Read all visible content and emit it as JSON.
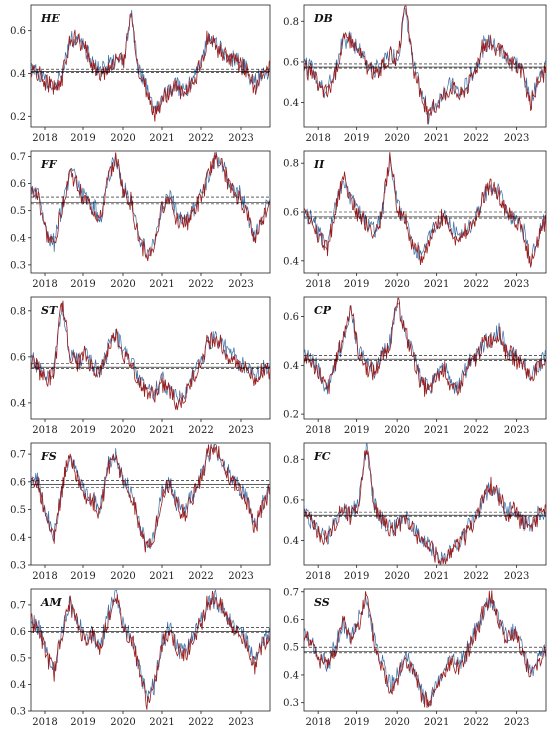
{
  "chart_data": [
    {
      "type": "line",
      "title": "HE",
      "x_ticks": [
        "2018",
        "2019",
        "2020",
        "2021",
        "2022",
        "2023"
      ],
      "y_ticks": [
        0.2,
        0.4,
        0.6
      ],
      "ylim": [
        0.15,
        0.72
      ],
      "mean": 0.41,
      "band": [
        0.405,
        0.42
      ],
      "series": [
        {
          "color": "#3b6ea5",
          "values": [
            0.42,
            0.41,
            0.36,
            0.34,
            0.38,
            0.55,
            0.57,
            0.52,
            0.45,
            0.41,
            0.44,
            0.47,
            0.46,
            0.68,
            0.4,
            0.33,
            0.22,
            0.28,
            0.32,
            0.35,
            0.31,
            0.37,
            0.45,
            0.57,
            0.54,
            0.5,
            0.47,
            0.46,
            0.42,
            0.35,
            0.4,
            0.43
          ]
        },
        {
          "color": "#9b1c1c",
          "values": [
            0.41,
            0.4,
            0.35,
            0.33,
            0.37,
            0.56,
            0.56,
            0.51,
            0.44,
            0.4,
            0.43,
            0.46,
            0.45,
            0.69,
            0.39,
            0.32,
            0.21,
            0.27,
            0.31,
            0.34,
            0.3,
            0.36,
            0.44,
            0.58,
            0.53,
            0.49,
            0.46,
            0.45,
            0.41,
            0.34,
            0.39,
            0.42
          ]
        }
      ]
    },
    {
      "type": "line",
      "title": "DB",
      "x_ticks": [
        "2018",
        "2019",
        "2020",
        "2021",
        "2022",
        "2023"
      ],
      "y_ticks": [
        0.4,
        0.6,
        0.8
      ],
      "ylim": [
        0.28,
        0.88
      ],
      "mean": 0.575,
      "band": [
        0.57,
        0.59
      ],
      "series": [
        {
          "color": "#3b6ea5",
          "values": [
            0.58,
            0.56,
            0.48,
            0.46,
            0.55,
            0.7,
            0.72,
            0.66,
            0.6,
            0.55,
            0.58,
            0.64,
            0.62,
            0.86,
            0.58,
            0.45,
            0.34,
            0.4,
            0.46,
            0.49,
            0.44,
            0.5,
            0.58,
            0.68,
            0.7,
            0.66,
            0.62,
            0.6,
            0.56,
            0.4,
            0.52,
            0.58
          ]
        },
        {
          "color": "#9b1c1c",
          "values": [
            0.57,
            0.55,
            0.47,
            0.45,
            0.54,
            0.71,
            0.71,
            0.65,
            0.59,
            0.54,
            0.57,
            0.63,
            0.61,
            0.87,
            0.57,
            0.44,
            0.33,
            0.39,
            0.45,
            0.48,
            0.43,
            0.49,
            0.57,
            0.69,
            0.69,
            0.65,
            0.61,
            0.59,
            0.55,
            0.39,
            0.51,
            0.57
          ]
        }
      ]
    },
    {
      "type": "line",
      "title": "FF",
      "x_ticks": [
        "2018",
        "2019",
        "2020",
        "2021",
        "2022",
        "2023"
      ],
      "y_ticks": [
        0.3,
        0.4,
        0.5,
        0.6,
        0.7
      ],
      "ylim": [
        0.27,
        0.72
      ],
      "mean": 0.53,
      "band": [
        0.525,
        0.55
      ],
      "series": [
        {
          "color": "#3b6ea5",
          "values": [
            0.58,
            0.56,
            0.42,
            0.38,
            0.52,
            0.64,
            0.6,
            0.55,
            0.52,
            0.47,
            0.62,
            0.7,
            0.58,
            0.54,
            0.4,
            0.34,
            0.38,
            0.52,
            0.56,
            0.48,
            0.46,
            0.5,
            0.55,
            0.62,
            0.7,
            0.66,
            0.58,
            0.56,
            0.5,
            0.4,
            0.48,
            0.55
          ]
        },
        {
          "color": "#9b1c1c",
          "values": [
            0.57,
            0.55,
            0.41,
            0.37,
            0.51,
            0.65,
            0.59,
            0.54,
            0.51,
            0.46,
            0.61,
            0.71,
            0.57,
            0.53,
            0.39,
            0.33,
            0.37,
            0.51,
            0.55,
            0.47,
            0.45,
            0.49,
            0.54,
            0.63,
            0.71,
            0.65,
            0.57,
            0.55,
            0.49,
            0.39,
            0.47,
            0.54
          ]
        }
      ]
    },
    {
      "type": "line",
      "title": "II",
      "x_ticks": [
        "2018",
        "2019",
        "2020",
        "2021",
        "2022",
        "2023"
      ],
      "y_ticks": [
        0.4,
        0.6,
        0.8
      ],
      "ylim": [
        0.35,
        0.85
      ],
      "mean": 0.58,
      "band": [
        0.575,
        0.6
      ],
      "series": [
        {
          "color": "#3b6ea5",
          "values": [
            0.6,
            0.58,
            0.5,
            0.46,
            0.62,
            0.74,
            0.66,
            0.6,
            0.56,
            0.52,
            0.6,
            0.82,
            0.62,
            0.58,
            0.46,
            0.42,
            0.48,
            0.56,
            0.6,
            0.52,
            0.5,
            0.54,
            0.58,
            0.66,
            0.7,
            0.68,
            0.6,
            0.58,
            0.54,
            0.4,
            0.5,
            0.58
          ]
        },
        {
          "color": "#9b1c1c",
          "values": [
            0.59,
            0.57,
            0.49,
            0.45,
            0.61,
            0.75,
            0.65,
            0.59,
            0.55,
            0.51,
            0.59,
            0.83,
            0.61,
            0.57,
            0.45,
            0.41,
            0.47,
            0.55,
            0.59,
            0.51,
            0.49,
            0.53,
            0.57,
            0.67,
            0.71,
            0.67,
            0.59,
            0.57,
            0.53,
            0.39,
            0.49,
            0.57
          ]
        }
      ]
    },
    {
      "type": "line",
      "title": "ST",
      "x_ticks": [
        "2018",
        "2019",
        "2020",
        "2021",
        "2022",
        "2023"
      ],
      "y_ticks": [
        0.4,
        0.6,
        0.8
      ],
      "ylim": [
        0.33,
        0.86
      ],
      "mean": 0.555,
      "band": [
        0.55,
        0.57
      ],
      "series": [
        {
          "color": "#3b6ea5",
          "values": [
            0.6,
            0.56,
            0.5,
            0.54,
            0.84,
            0.62,
            0.58,
            0.62,
            0.56,
            0.54,
            0.64,
            0.7,
            0.62,
            0.58,
            0.5,
            0.46,
            0.44,
            0.5,
            0.46,
            0.4,
            0.44,
            0.52,
            0.58,
            0.66,
            0.68,
            0.64,
            0.6,
            0.58,
            0.56,
            0.5,
            0.56,
            0.54
          ]
        },
        {
          "color": "#9b1c1c",
          "values": [
            0.59,
            0.55,
            0.49,
            0.53,
            0.85,
            0.61,
            0.57,
            0.61,
            0.55,
            0.53,
            0.63,
            0.71,
            0.61,
            0.57,
            0.49,
            0.45,
            0.43,
            0.49,
            0.45,
            0.39,
            0.43,
            0.51,
            0.57,
            0.67,
            0.69,
            0.63,
            0.59,
            0.57,
            0.55,
            0.49,
            0.55,
            0.53
          ]
        }
      ]
    },
    {
      "type": "line",
      "title": "CP",
      "x_ticks": [
        "2018",
        "2019",
        "2020",
        "2021",
        "2022",
        "2023"
      ],
      "y_ticks": [
        0.2,
        0.4,
        0.6
      ],
      "ylim": [
        0.18,
        0.68
      ],
      "mean": 0.425,
      "band": [
        0.42,
        0.44
      ],
      "series": [
        {
          "color": "#3b6ea5",
          "values": [
            0.44,
            0.42,
            0.38,
            0.3,
            0.42,
            0.5,
            0.64,
            0.46,
            0.4,
            0.38,
            0.44,
            0.5,
            0.66,
            0.54,
            0.44,
            0.34,
            0.3,
            0.36,
            0.4,
            0.3,
            0.32,
            0.4,
            0.44,
            0.48,
            0.5,
            0.54,
            0.46,
            0.44,
            0.42,
            0.36,
            0.4,
            0.44
          ]
        },
        {
          "color": "#9b1c1c",
          "values": [
            0.43,
            0.41,
            0.37,
            0.29,
            0.41,
            0.51,
            0.65,
            0.45,
            0.39,
            0.37,
            0.43,
            0.49,
            0.67,
            0.53,
            0.43,
            0.33,
            0.29,
            0.35,
            0.39,
            0.29,
            0.31,
            0.39,
            0.43,
            0.49,
            0.51,
            0.53,
            0.45,
            0.43,
            0.41,
            0.35,
            0.39,
            0.43
          ]
        }
      ]
    },
    {
      "type": "line",
      "title": "FS",
      "x_ticks": [
        "2018",
        "2019",
        "2020",
        "2021",
        "2022",
        "2023"
      ],
      "y_ticks": [
        0.3,
        0.4,
        0.5,
        0.6,
        0.7
      ],
      "ylim": [
        0.3,
        0.74
      ],
      "mean": 0.59,
      "band": [
        0.58,
        0.605
      ],
      "series": [
        {
          "color": "#3b6ea5",
          "values": [
            0.62,
            0.6,
            0.48,
            0.4,
            0.58,
            0.7,
            0.62,
            0.56,
            0.54,
            0.5,
            0.66,
            0.7,
            0.6,
            0.56,
            0.46,
            0.36,
            0.42,
            0.56,
            0.6,
            0.52,
            0.5,
            0.56,
            0.62,
            0.7,
            0.72,
            0.66,
            0.62,
            0.58,
            0.54,
            0.44,
            0.52,
            0.58
          ]
        },
        {
          "color": "#9b1c1c",
          "values": [
            0.61,
            0.59,
            0.47,
            0.39,
            0.57,
            0.71,
            0.61,
            0.55,
            0.53,
            0.49,
            0.65,
            0.71,
            0.59,
            0.55,
            0.45,
            0.35,
            0.41,
            0.55,
            0.59,
            0.51,
            0.49,
            0.55,
            0.61,
            0.71,
            0.73,
            0.65,
            0.61,
            0.57,
            0.53,
            0.43,
            0.51,
            0.57
          ]
        }
      ]
    },
    {
      "type": "line",
      "title": "FC",
      "x_ticks": [
        "2018",
        "2019",
        "2020",
        "2021",
        "2022",
        "2023"
      ],
      "y_ticks": [
        0.4,
        0.6,
        0.8
      ],
      "ylim": [
        0.28,
        0.88
      ],
      "mean": 0.525,
      "band": [
        0.52,
        0.54
      ],
      "series": [
        {
          "color": "#3b6ea5",
          "values": [
            0.54,
            0.5,
            0.44,
            0.42,
            0.5,
            0.56,
            0.52,
            0.6,
            0.86,
            0.58,
            0.5,
            0.46,
            0.48,
            0.52,
            0.46,
            0.4,
            0.38,
            0.34,
            0.3,
            0.38,
            0.4,
            0.46,
            0.52,
            0.6,
            0.66,
            0.62,
            0.54,
            0.56,
            0.5,
            0.48,
            0.52,
            0.54
          ]
        },
        {
          "color": "#9b1c1c",
          "values": [
            0.53,
            0.49,
            0.43,
            0.41,
            0.49,
            0.57,
            0.51,
            0.59,
            0.87,
            0.57,
            0.49,
            0.45,
            0.47,
            0.51,
            0.45,
            0.39,
            0.37,
            0.33,
            0.29,
            0.37,
            0.39,
            0.45,
            0.51,
            0.61,
            0.67,
            0.61,
            0.53,
            0.55,
            0.49,
            0.47,
            0.51,
            0.53
          ]
        }
      ]
    },
    {
      "type": "line",
      "title": "AM",
      "x_ticks": [
        "2018",
        "2019",
        "2020",
        "2021",
        "2022",
        "2023"
      ],
      "y_ticks": [
        0.3,
        0.4,
        0.5,
        0.6,
        0.7
      ],
      "ylim": [
        0.3,
        0.76
      ],
      "mean": 0.6,
      "band": [
        0.595,
        0.615
      ],
      "series": [
        {
          "color": "#3b6ea5",
          "values": [
            0.64,
            0.62,
            0.52,
            0.46,
            0.6,
            0.7,
            0.64,
            0.58,
            0.6,
            0.54,
            0.66,
            0.74,
            0.62,
            0.58,
            0.48,
            0.34,
            0.4,
            0.56,
            0.62,
            0.54,
            0.52,
            0.58,
            0.64,
            0.7,
            0.72,
            0.68,
            0.64,
            0.6,
            0.56,
            0.48,
            0.56,
            0.6
          ]
        },
        {
          "color": "#9b1c1c",
          "values": [
            0.63,
            0.61,
            0.51,
            0.45,
            0.59,
            0.71,
            0.63,
            0.57,
            0.59,
            0.53,
            0.65,
            0.75,
            0.61,
            0.57,
            0.47,
            0.33,
            0.39,
            0.55,
            0.61,
            0.53,
            0.51,
            0.57,
            0.63,
            0.71,
            0.73,
            0.67,
            0.63,
            0.59,
            0.55,
            0.47,
            0.55,
            0.59
          ]
        }
      ]
    },
    {
      "type": "line",
      "title": "SS",
      "x_ticks": [
        "2018",
        "2019",
        "2020",
        "2021",
        "2022",
        "2023"
      ],
      "y_ticks": [
        0.3,
        0.4,
        0.5,
        0.6,
        0.7
      ],
      "ylim": [
        0.27,
        0.71
      ],
      "mean": 0.485,
      "band": [
        0.48,
        0.5
      ],
      "series": [
        {
          "color": "#3b6ea5",
          "values": [
            0.56,
            0.52,
            0.46,
            0.44,
            0.5,
            0.58,
            0.54,
            0.6,
            0.68,
            0.52,
            0.44,
            0.36,
            0.4,
            0.46,
            0.42,
            0.34,
            0.3,
            0.36,
            0.42,
            0.46,
            0.44,
            0.5,
            0.56,
            0.62,
            0.68,
            0.6,
            0.54,
            0.56,
            0.5,
            0.4,
            0.46,
            0.5
          ]
        },
        {
          "color": "#9b1c1c",
          "values": [
            0.55,
            0.51,
            0.45,
            0.43,
            0.49,
            0.59,
            0.53,
            0.59,
            0.69,
            0.51,
            0.43,
            0.35,
            0.39,
            0.45,
            0.41,
            0.33,
            0.29,
            0.35,
            0.41,
            0.45,
            0.43,
            0.49,
            0.55,
            0.63,
            0.69,
            0.59,
            0.53,
            0.55,
            0.49,
            0.39,
            0.45,
            0.49
          ]
        }
      ]
    }
  ]
}
